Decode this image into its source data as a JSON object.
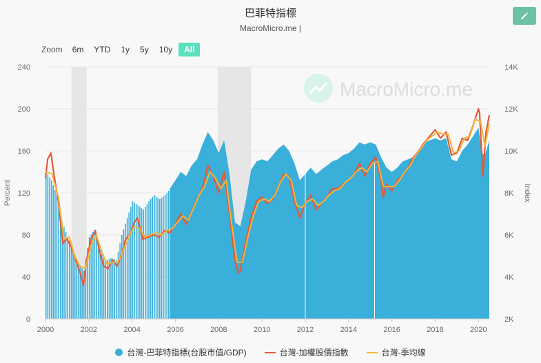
{
  "header": {
    "title": "巴菲特指標",
    "subtitle": "MacroMicro.me |",
    "watermark": "MacroMicro.me"
  },
  "toolbar": {
    "edit_icon": "pencil-icon",
    "zoom_label": "Zoom",
    "zoom_options": [
      "6m",
      "YTD",
      "1y",
      "5y",
      "10y",
      "All"
    ],
    "zoom_selected": "All"
  },
  "colors": {
    "buffett": "#3aafd9",
    "taiex": "#e4593a",
    "ma": "#f2b63a",
    "recession": "#e6e6e6",
    "accent": "#6cc3a3"
  },
  "chart_data": {
    "type": "area",
    "title": "巴菲特指標",
    "y_left": {
      "label": "Percent",
      "range": [
        0,
        240
      ],
      "ticks": [
        "0",
        "40",
        "80",
        "120",
        "160",
        "200",
        "240"
      ]
    },
    "y_right": {
      "label": "Index",
      "range": [
        2000,
        14000
      ],
      "ticks": [
        "2K",
        "4K",
        "6K",
        "8K",
        "10K",
        "12K",
        "14K"
      ]
    },
    "x_axis": {
      "range": [
        2000,
        2020.5
      ],
      "ticks": [
        "2000",
        "2002",
        "2004",
        "2006",
        "2008",
        "2010",
        "2012",
        "2014",
        "2016",
        "2018",
        "2020"
      ]
    },
    "recession_bands": [
      [
        2001.2,
        2001.9
      ],
      [
        2007.95,
        2009.5
      ]
    ],
    "legend": [
      "台灣-巴菲特指標(台股市值/GDP)",
      "台灣-加權股價指數",
      "台灣-季均線"
    ],
    "legend_position": "bottom",
    "series": [
      {
        "name": "台灣-巴菲特指標(台股市值/GDP)",
        "axis": "left",
        "points": [
          [
            2000.0,
            140
          ],
          [
            2000.25,
            132
          ],
          [
            2000.5,
            118
          ],
          [
            2000.75,
            92
          ],
          [
            2001.0,
            78
          ],
          [
            2001.25,
            66
          ],
          [
            2001.5,
            52
          ],
          [
            2001.75,
            46
          ],
          [
            2002.0,
            78
          ],
          [
            2002.25,
            85
          ],
          [
            2002.5,
            66
          ],
          [
            2002.75,
            55
          ],
          [
            2003.0,
            58
          ],
          [
            2003.25,
            56
          ],
          [
            2003.5,
            80
          ],
          [
            2003.75,
            96
          ],
          [
            2004.0,
            112
          ],
          [
            2004.25,
            108
          ],
          [
            2004.5,
            104
          ],
          [
            2004.75,
            112
          ],
          [
            2005.0,
            118
          ],
          [
            2005.25,
            114
          ],
          [
            2005.5,
            118
          ],
          [
            2005.75,
            124
          ],
          [
            2006.0,
            132
          ],
          [
            2006.25,
            140
          ],
          [
            2006.5,
            136
          ],
          [
            2006.75,
            146
          ],
          [
            2007.0,
            152
          ],
          [
            2007.25,
            166
          ],
          [
            2007.5,
            178
          ],
          [
            2007.75,
            170
          ],
          [
            2008.0,
            158
          ],
          [
            2008.25,
            170
          ],
          [
            2008.5,
            138
          ],
          [
            2008.75,
            92
          ],
          [
            2009.0,
            88
          ],
          [
            2009.25,
            112
          ],
          [
            2009.5,
            142
          ],
          [
            2009.75,
            150
          ],
          [
            2010.0,
            152
          ],
          [
            2010.25,
            150
          ],
          [
            2010.5,
            156
          ],
          [
            2010.75,
            162
          ],
          [
            2011.0,
            166
          ],
          [
            2011.25,
            160
          ],
          [
            2011.5,
            148
          ],
          [
            2011.75,
            132
          ],
          [
            2012.0,
            138
          ],
          [
            2012.25,
            144
          ],
          [
            2012.5,
            138
          ],
          [
            2012.75,
            142
          ],
          [
            2013.0,
            146
          ],
          [
            2013.25,
            150
          ],
          [
            2013.5,
            152
          ],
          [
            2013.75,
            156
          ],
          [
            2014.0,
            158
          ],
          [
            2014.25,
            162
          ],
          [
            2014.5,
            168
          ],
          [
            2014.75,
            166
          ],
          [
            2015.0,
            168
          ],
          [
            2015.25,
            166
          ],
          [
            2015.5,
            154
          ],
          [
            2015.75,
            144
          ],
          [
            2016.0,
            140
          ],
          [
            2016.25,
            144
          ],
          [
            2016.5,
            150
          ],
          [
            2016.75,
            152
          ],
          [
            2017.0,
            154
          ],
          [
            2017.25,
            160
          ],
          [
            2017.5,
            168
          ],
          [
            2017.75,
            170
          ],
          [
            2018.0,
            172
          ],
          [
            2018.25,
            170
          ],
          [
            2018.5,
            172
          ],
          [
            2018.75,
            152
          ],
          [
            2019.0,
            150
          ],
          [
            2019.25,
            160
          ],
          [
            2019.5,
            166
          ],
          [
            2019.75,
            174
          ],
          [
            2020.0,
            182
          ],
          [
            2020.15,
            158
          ],
          [
            2020.3,
            156
          ],
          [
            2020.5,
            170
          ]
        ]
      },
      {
        "name": "台灣-加權股價指數",
        "axis": "right",
        "points": [
          [
            2000.0,
            8700
          ],
          [
            2000.1,
            9600
          ],
          [
            2000.25,
            9900
          ],
          [
            2000.4,
            8800
          ],
          [
            2000.6,
            7600
          ],
          [
            2000.8,
            5600
          ],
          [
            2001.0,
            5800
          ],
          [
            2001.2,
            5400
          ],
          [
            2001.4,
            4800
          ],
          [
            2001.6,
            4200
          ],
          [
            2001.75,
            3600
          ],
          [
            2001.9,
            4800
          ],
          [
            2002.1,
            5800
          ],
          [
            2002.3,
            6200
          ],
          [
            2002.5,
            5200
          ],
          [
            2002.7,
            4500
          ],
          [
            2002.9,
            4400
          ],
          [
            2003.1,
            4800
          ],
          [
            2003.3,
            4500
          ],
          [
            2003.5,
            5000
          ],
          [
            2003.7,
            5800
          ],
          [
            2003.9,
            6000
          ],
          [
            2004.1,
            6600
          ],
          [
            2004.25,
            6800
          ],
          [
            2004.5,
            5800
          ],
          [
            2004.75,
            5900
          ],
          [
            2005.0,
            6000
          ],
          [
            2005.25,
            5900
          ],
          [
            2005.5,
            6200
          ],
          [
            2005.75,
            6100
          ],
          [
            2006.0,
            6500
          ],
          [
            2006.25,
            7000
          ],
          [
            2006.5,
            6500
          ],
          [
            2006.75,
            7100
          ],
          [
            2007.0,
            7700
          ],
          [
            2007.25,
            8200
          ],
          [
            2007.5,
            9300
          ],
          [
            2007.75,
            8800
          ],
          [
            2008.0,
            8000
          ],
          [
            2008.25,
            9000
          ],
          [
            2008.5,
            7000
          ],
          [
            2008.75,
            4800
          ],
          [
            2008.9,
            4200
          ],
          [
            2009.0,
            4300
          ],
          [
            2009.25,
            5700
          ],
          [
            2009.5,
            6800
          ],
          [
            2009.75,
            7600
          ],
          [
            2010.0,
            7800
          ],
          [
            2010.25,
            7500
          ],
          [
            2010.5,
            7700
          ],
          [
            2010.75,
            8300
          ],
          [
            2011.0,
            8900
          ],
          [
            2011.25,
            8800
          ],
          [
            2011.5,
            7600
          ],
          [
            2011.75,
            6800
          ],
          [
            2012.0,
            7500
          ],
          [
            2012.25,
            7900
          ],
          [
            2012.5,
            7200
          ],
          [
            2012.75,
            7500
          ],
          [
            2013.0,
            7800
          ],
          [
            2013.25,
            8200
          ],
          [
            2013.5,
            8200
          ],
          [
            2013.75,
            8400
          ],
          [
            2014.0,
            8600
          ],
          [
            2014.25,
            8900
          ],
          [
            2014.5,
            9400
          ],
          [
            2014.75,
            8800
          ],
          [
            2015.0,
            9400
          ],
          [
            2015.25,
            9700
          ],
          [
            2015.5,
            8600
          ],
          [
            2015.6,
            7800
          ],
          [
            2015.75,
            8400
          ],
          [
            2016.0,
            8100
          ],
          [
            2016.25,
            8600
          ],
          [
            2016.5,
            8800
          ],
          [
            2016.75,
            9200
          ],
          [
            2017.0,
            9700
          ],
          [
            2017.25,
            10000
          ],
          [
            2017.5,
            10400
          ],
          [
            2017.75,
            10700
          ],
          [
            2018.0,
            11000
          ],
          [
            2018.25,
            10600
          ],
          [
            2018.5,
            10900
          ],
          [
            2018.75,
            9800
          ],
          [
            2019.0,
            9900
          ],
          [
            2019.25,
            10600
          ],
          [
            2019.5,
            10500
          ],
          [
            2019.75,
            11200
          ],
          [
            2020.0,
            12000
          ],
          [
            2020.05,
            11800
          ],
          [
            2020.2,
            8800
          ],
          [
            2020.35,
            10900
          ],
          [
            2020.5,
            11700
          ]
        ]
      },
      {
        "name": "台灣-季均線",
        "axis": "right",
        "points": [
          [
            2000.0,
            9000
          ],
          [
            2000.3,
            8900
          ],
          [
            2000.6,
            7800
          ],
          [
            2000.85,
            5800
          ],
          [
            2001.1,
            5900
          ],
          [
            2001.35,
            5000
          ],
          [
            2001.6,
            4500
          ],
          [
            2001.85,
            4400
          ],
          [
            2002.1,
            5500
          ],
          [
            2002.35,
            6000
          ],
          [
            2002.6,
            5200
          ],
          [
            2002.85,
            4600
          ],
          [
            2003.1,
            4700
          ],
          [
            2003.35,
            4700
          ],
          [
            2003.6,
            5300
          ],
          [
            2003.85,
            5900
          ],
          [
            2004.1,
            6400
          ],
          [
            2004.35,
            6300
          ],
          [
            2004.6,
            5900
          ],
          [
            2004.85,
            6000
          ],
          [
            2005.1,
            6100
          ],
          [
            2005.35,
            6000
          ],
          [
            2005.6,
            6200
          ],
          [
            2005.85,
            6300
          ],
          [
            2006.1,
            6600
          ],
          [
            2006.35,
            6900
          ],
          [
            2006.6,
            6700
          ],
          [
            2006.85,
            7300
          ],
          [
            2007.1,
            7900
          ],
          [
            2007.35,
            8300
          ],
          [
            2007.6,
            9000
          ],
          [
            2007.85,
            8700
          ],
          [
            2008.1,
            8200
          ],
          [
            2008.35,
            8600
          ],
          [
            2008.6,
            6500
          ],
          [
            2008.85,
            4700
          ],
          [
            2009.1,
            4700
          ],
          [
            2009.35,
            5900
          ],
          [
            2009.6,
            6900
          ],
          [
            2009.85,
            7600
          ],
          [
            2010.1,
            7700
          ],
          [
            2010.35,
            7600
          ],
          [
            2010.6,
            7900
          ],
          [
            2010.85,
            8500
          ],
          [
            2011.1,
            8900
          ],
          [
            2011.35,
            8600
          ],
          [
            2011.6,
            7400
          ],
          [
            2011.85,
            7300
          ],
          [
            2012.1,
            7600
          ],
          [
            2012.35,
            7700
          ],
          [
            2012.6,
            7400
          ],
          [
            2012.85,
            7600
          ],
          [
            2013.1,
            7900
          ],
          [
            2013.35,
            8100
          ],
          [
            2013.6,
            8200
          ],
          [
            2013.85,
            8500
          ],
          [
            2014.1,
            8700
          ],
          [
            2014.35,
            9000
          ],
          [
            2014.6,
            9200
          ],
          [
            2014.85,
            9000
          ],
          [
            2015.1,
            9400
          ],
          [
            2015.35,
            9500
          ],
          [
            2015.6,
            8300
          ],
          [
            2015.85,
            8300
          ],
          [
            2016.1,
            8300
          ],
          [
            2016.35,
            8600
          ],
          [
            2016.6,
            9000
          ],
          [
            2016.85,
            9300
          ],
          [
            2017.1,
            9800
          ],
          [
            2017.35,
            10100
          ],
          [
            2017.6,
            10500
          ],
          [
            2017.85,
            10700
          ],
          [
            2018.1,
            10900
          ],
          [
            2018.35,
            10800
          ],
          [
            2018.6,
            10800
          ],
          [
            2018.85,
            9900
          ],
          [
            2019.1,
            10000
          ],
          [
            2019.35,
            10600
          ],
          [
            2019.6,
            10700
          ],
          [
            2019.85,
            11500
          ],
          [
            2020.1,
            11400
          ],
          [
            2020.3,
            10200
          ],
          [
            2020.5,
            11300
          ]
        ]
      }
    ]
  }
}
